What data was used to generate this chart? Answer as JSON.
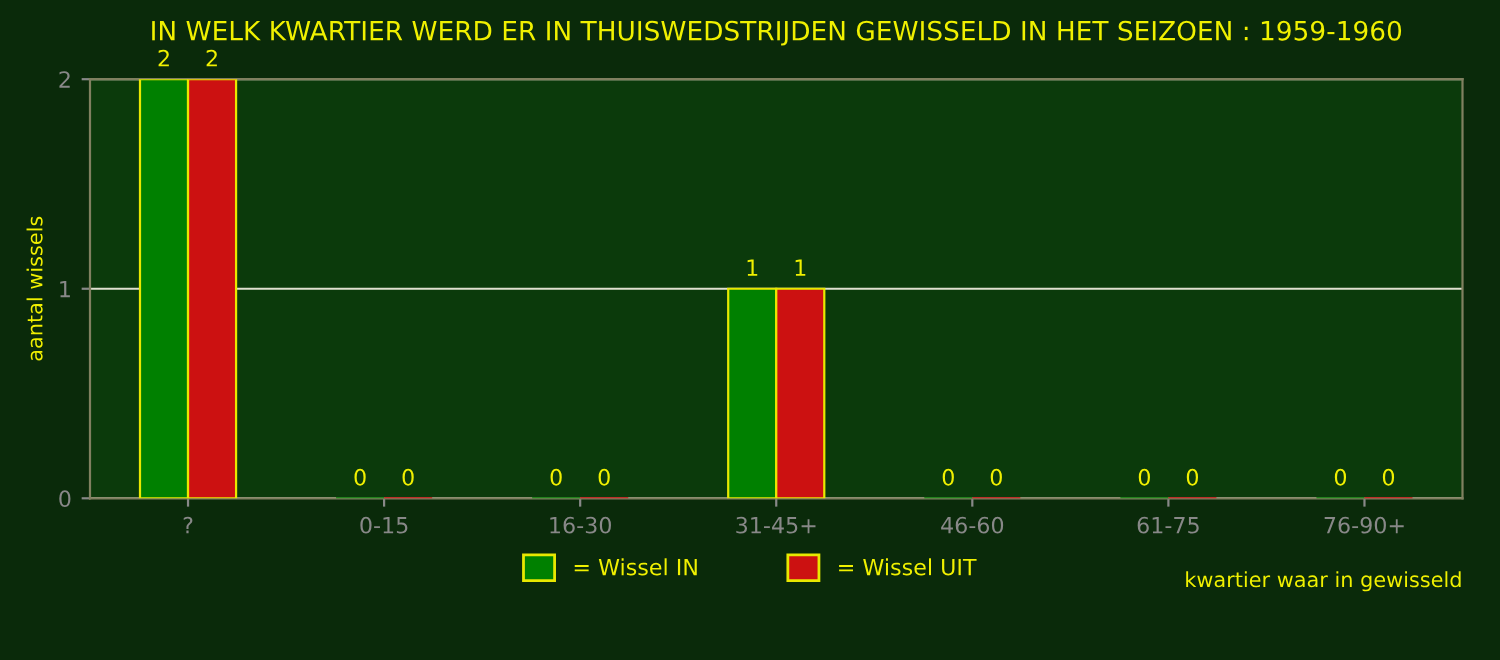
{
  "chart_data": {
    "type": "bar",
    "title": "IN WELK KWARTIER WERD ER IN THUISWEDSTRIJDEN GEWISSELD IN HET SEIZOEN : 1959-1960",
    "xlabel": "kwartier waar in gewisseld",
    "ylabel": "aantal wissels",
    "categories": [
      "?",
      "0-15",
      "16-30",
      "31-45+",
      "46-60",
      "61-75",
      "76-90+"
    ],
    "series": [
      {
        "name": "= Wissel IN",
        "color": "#008000",
        "values": [
          2,
          0,
          0,
          1,
          0,
          0,
          0
        ]
      },
      {
        "name": "= Wissel UIT",
        "color": "#cc1111",
        "values": [
          2,
          0,
          0,
          1,
          0,
          0,
          0
        ]
      }
    ],
    "ylim": [
      0,
      2
    ],
    "yticks": [
      0,
      1,
      2
    ],
    "grid": "y",
    "legend": "bottom",
    "data_labels": true
  }
}
